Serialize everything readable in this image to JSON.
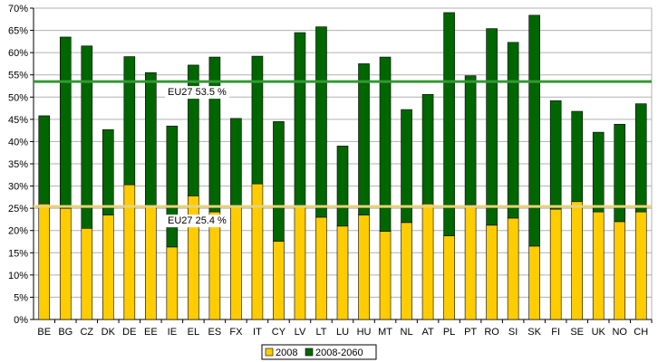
{
  "chart_data": {
    "type": "bar",
    "stacked": true,
    "title": "",
    "xlabel": "",
    "ylabel": "",
    "ylim": [
      0,
      70
    ],
    "yticks": [
      "0%",
      "5%",
      "10%",
      "15%",
      "20%",
      "25%",
      "30%",
      "35%",
      "40%",
      "45%",
      "50%",
      "55%",
      "60%",
      "65%",
      "70%"
    ],
    "grid": true,
    "legend_position": "bottom-center",
    "categories": [
      "BE",
      "BG",
      "CZ",
      "DK",
      "DE",
      "EE",
      "IE",
      "EL",
      "ES",
      "FX",
      "IT",
      "CY",
      "LV",
      "LT",
      "LU",
      "HU",
      "MT",
      "NL",
      "AT",
      "PL",
      "PT",
      "RO",
      "SI",
      "SK",
      "FI",
      "SE",
      "UK",
      "NO",
      "CH"
    ],
    "series": [
      {
        "name": "2008",
        "color": "#FFCC00",
        "values": [
          26.0,
          25.0,
          20.5,
          23.5,
          30.3,
          25.2,
          16.3,
          27.8,
          24.2,
          25.5,
          30.5,
          17.6,
          25.2,
          23.0,
          21.0,
          23.5,
          19.8,
          21.8,
          26.0,
          18.8,
          25.8,
          21.2,
          22.8,
          16.5,
          24.8,
          26.5,
          24.2,
          22.0,
          24.2
        ]
      },
      {
        "name": "2008-2060",
        "color": "#006600",
        "values": [
          19.8,
          38.5,
          41.0,
          19.2,
          28.8,
          30.3,
          27.2,
          29.4,
          34.8,
          19.7,
          28.7,
          26.9,
          39.3,
          42.8,
          18.0,
          34.0,
          39.2,
          25.4,
          24.6,
          50.2,
          29.0,
          44.2,
          39.5,
          51.9,
          24.4,
          20.3,
          17.9,
          21.9,
          24.3
        ]
      }
    ],
    "reference_lines": [
      {
        "label": "EU27 53.5 %",
        "value": 53.5,
        "color": "#339933"
      },
      {
        "label": "EU27 25.4 %",
        "value": 25.4,
        "color": "#E8D27A"
      }
    ]
  }
}
